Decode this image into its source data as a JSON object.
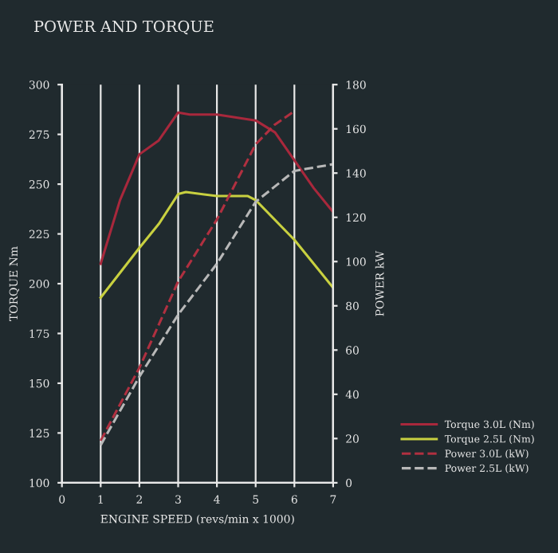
{
  "chart_data": {
    "type": "line",
    "title": "POWER AND TORQUE",
    "xlabel": "ENGINE SPEED (revs/min x 1000)",
    "ylabel": "TORQUE Nm",
    "y2label": "POWER kW",
    "xlim": [
      0,
      7
    ],
    "xticks": [
      0,
      1,
      2,
      3,
      4,
      5,
      6,
      7
    ],
    "ylim": [
      100,
      300
    ],
    "yticks": [
      100,
      125,
      150,
      175,
      200,
      225,
      250,
      275,
      300
    ],
    "y2lim": [
      0,
      180
    ],
    "y2ticks": [
      0,
      20,
      40,
      60,
      80,
      100,
      120,
      140,
      160,
      180
    ],
    "grid": "x",
    "legend": "bottom right",
    "marker": "none",
    "series": [
      {
        "name": "Torque 3.0L (Nm)",
        "color": "#a8283c",
        "line_style": "solid",
        "x": [
          1,
          1.5,
          2,
          2.5,
          3,
          3.3,
          4,
          5,
          5.5,
          6,
          6.5,
          7
        ],
        "values": [
          210,
          242,
          265,
          272,
          286,
          285,
          285,
          282,
          276,
          262,
          248,
          236
        ]
      },
      {
        "name": "Torque 2.5L (Nm)",
        "color": "#c8d040",
        "line_style": "solid",
        "x": [
          1,
          2,
          2.5,
          3,
          3.2,
          4,
          4.8,
          5,
          6,
          7
        ],
        "values": [
          193,
          218,
          230,
          245,
          246,
          244,
          244,
          242,
          222,
          198
        ]
      },
      {
        "name": "Power 3.0L (kW)",
        "color": "#b03040",
        "line_style": "dashed",
        "axis": "y2",
        "x": [
          1,
          2,
          3,
          4,
          5,
          5.5,
          6
        ],
        "values": [
          19,
          52,
          91,
          119,
          153,
          162,
          168
        ]
      },
      {
        "name": "Power 2.5L (kW)",
        "color": "#b8b8b8",
        "line_style": "dashed",
        "axis": "y2",
        "x": [
          1,
          2,
          3,
          4,
          5,
          6,
          7
        ],
        "values": [
          17,
          48,
          76,
          99,
          127,
          141,
          144
        ]
      }
    ]
  }
}
